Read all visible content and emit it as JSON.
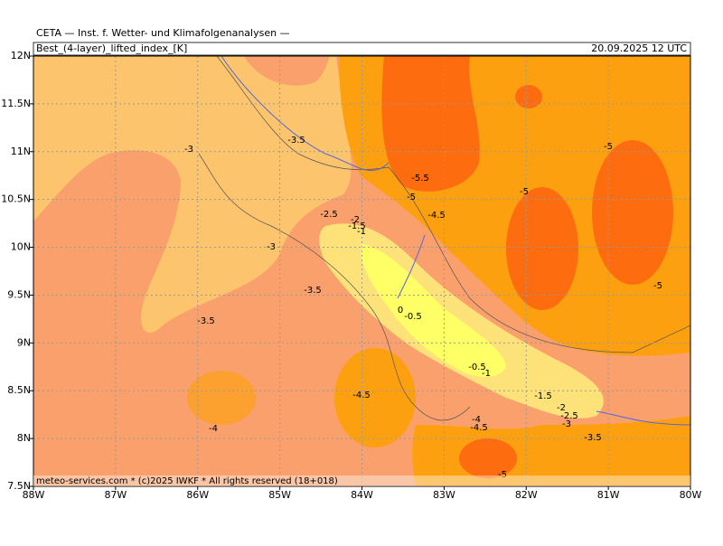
{
  "header": {
    "title": "CETA — Inst. f. Wetter- und Klimafolgenanalysen —",
    "field": "Best_(4-layer)_lifted_index_[K]",
    "valid_time": "20.09.2025 12 UTC"
  },
  "map": {
    "lon_range": [
      -88,
      -80
    ],
    "lat_range": [
      7.5,
      12
    ],
    "lon_ticks": [
      {
        "value": -88,
        "label": "88W"
      },
      {
        "value": -87,
        "label": "87W"
      },
      {
        "value": -86,
        "label": "86W"
      },
      {
        "value": -85,
        "label": "85W"
      },
      {
        "value": -84,
        "label": "84W"
      },
      {
        "value": -83,
        "label": "83W"
      },
      {
        "value": -82,
        "label": "82W"
      },
      {
        "value": -81,
        "label": "81W"
      },
      {
        "value": -80,
        "label": "80W"
      }
    ],
    "lat_ticks": [
      {
        "value": 7.5,
        "label": "7.5N"
      },
      {
        "value": 8,
        "label": "8N"
      },
      {
        "value": 8.5,
        "label": "8.5N"
      },
      {
        "value": 9,
        "label": "9N"
      },
      {
        "value": 9.5,
        "label": "9.5N"
      },
      {
        "value": 10,
        "label": "10N"
      },
      {
        "value": 10.5,
        "label": "10.5N"
      },
      {
        "value": 11,
        "label": "11N"
      },
      {
        "value": 11.5,
        "label": "11.5N"
      },
      {
        "value": 12,
        "label": "12N"
      }
    ],
    "contour_labels": [
      -3.5,
      -3,
      -5.5,
      -5,
      -5,
      -5,
      -4.5,
      -2.5,
      -2,
      -1.5,
      -1,
      -3,
      -3.5,
      -5,
      0,
      -0.5,
      -3.5,
      -0.5,
      -1,
      -4.5,
      -1.5,
      -2,
      -2.5,
      -3,
      -4,
      -4,
      -4.5,
      -3.5,
      -5
    ]
  },
  "footer": "meteo-services.com * (c)2025 IWKF * All rights reserved (18+018)"
}
